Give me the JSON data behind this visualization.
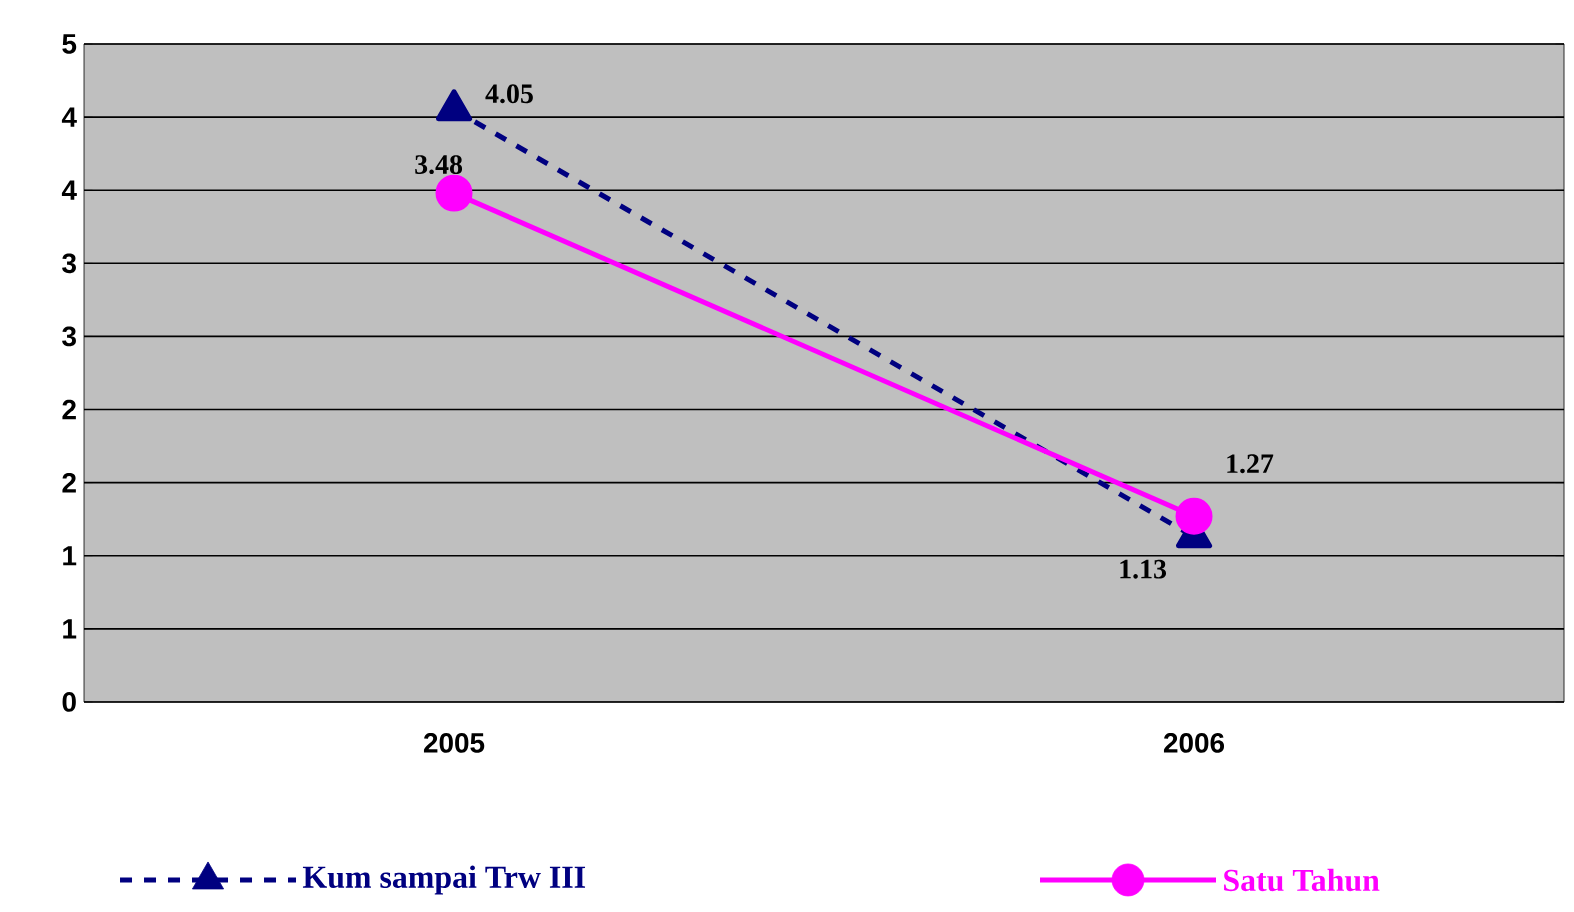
{
  "chart_data": {
    "type": "line",
    "categories": [
      "2005",
      "2006"
    ],
    "series": [
      {
        "name": "Kum sampai Trw III",
        "color": "#000080",
        "values": [
          4.05,
          1.13
        ],
        "marker": "triangle",
        "line_style": "dashed"
      },
      {
        "name": "Satu Tahun",
        "color": "#ff00ff",
        "values": [
          3.48,
          1.27
        ],
        "marker": "circle",
        "line_style": "solid"
      }
    ],
    "ylim": [
      0,
      4.5
    ],
    "yticks": [
      0,
      {
        "value": 0.5,
        "label": "1"
      },
      1,
      {
        "value": 1.5,
        "label": "2"
      },
      2,
      {
        "value": 2.5,
        "label": "3"
      },
      3,
      {
        "value": 3.5,
        "label": "4"
      },
      4,
      {
        "value": 4.5,
        "label": "5"
      }
    ],
    "grid": "y",
    "legend": "bottom",
    "data_labels": true
  }
}
